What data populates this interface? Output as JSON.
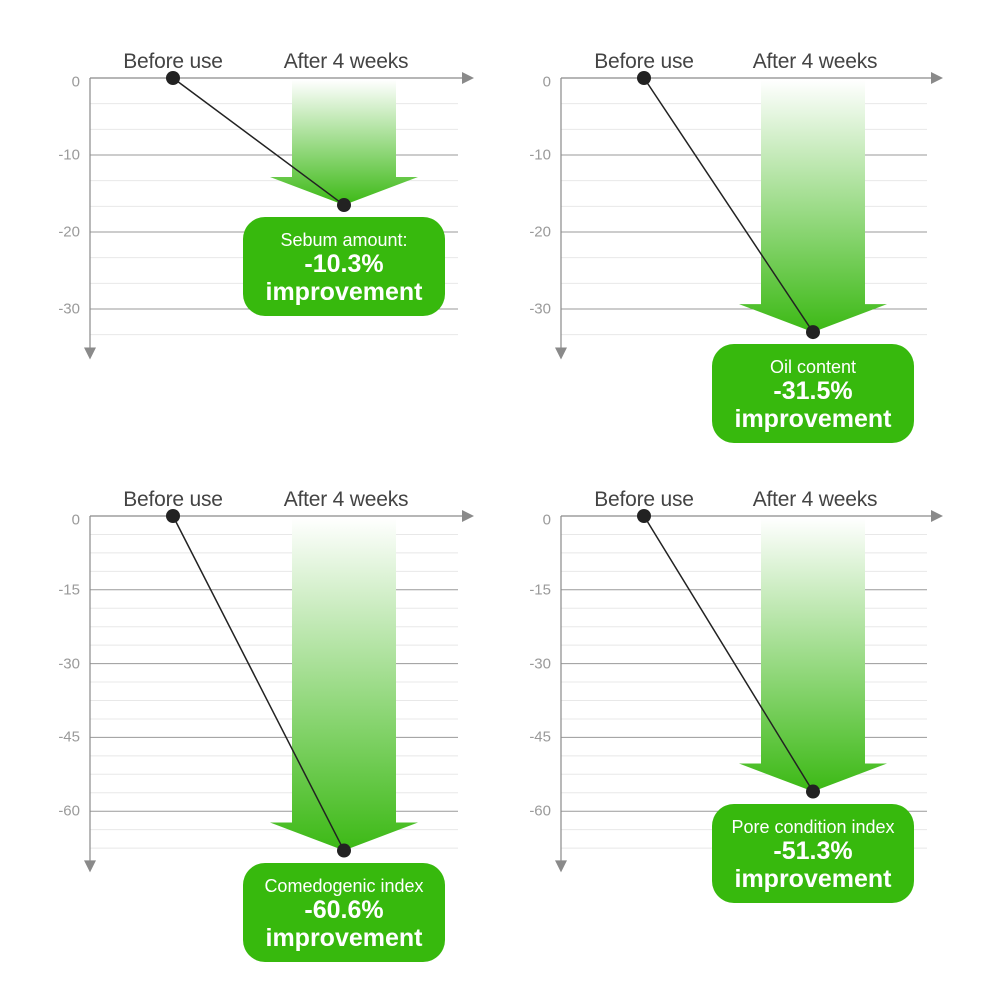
{
  "colors": {
    "arrow_dark": "#3cb915",
    "arrow_light": "#ffffff",
    "callout_bg": "#37b90d",
    "line": "#222222",
    "axis": "#8a8a8a",
    "grid_major": "#9a9a9a",
    "grid_minor": "#e8e8e8"
  },
  "chart_data": [
    {
      "type": "line",
      "categories": [
        "Before use",
        "After 4 weeks"
      ],
      "values": [
        0,
        -16.5
      ],
      "ylim": [
        -35,
        0
      ],
      "yticks": [
        0,
        -10,
        -20,
        -30
      ],
      "callout": {
        "metric": "Sebum amount:",
        "percent": "-10.3%",
        "text": "improvement"
      }
    },
    {
      "type": "line",
      "categories": [
        "Before use",
        "After 4 weeks"
      ],
      "values": [
        0,
        -33
      ],
      "ylim": [
        -35,
        0
      ],
      "yticks": [
        0,
        -10,
        -20,
        -30
      ],
      "callout": {
        "metric": "Oil content",
        "percent": "-31.5%",
        "text": "improvement"
      }
    },
    {
      "type": "line",
      "categories": [
        "Before use",
        "After 4 weeks"
      ],
      "values": [
        0,
        -68
      ],
      "ylim": [
        -70,
        0
      ],
      "yticks": [
        0,
        -15,
        -30,
        -45,
        -60
      ],
      "callout": {
        "metric": "Comedogenic index",
        "percent": "-60.6%",
        "text": "improvement"
      }
    },
    {
      "type": "line",
      "categories": [
        "Before use",
        "After 4 weeks"
      ],
      "values": [
        0,
        -56
      ],
      "ylim": [
        -70,
        0
      ],
      "yticks": [
        0,
        -15,
        -30,
        -45,
        -60
      ],
      "callout": {
        "metric": "Pore condition index",
        "percent": "-51.3%",
        "text": "improvement"
      }
    }
  ]
}
